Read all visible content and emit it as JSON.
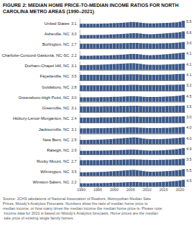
{
  "chart_data": [
    {
      "type": "bar",
      "title": "FIGURE 2: MEDIAN HOME PRICE-TO-MEDIAN INCOME RATIOS FOR NORTH CAROLINA METRO AREAS (1990–2021)",
      "ylabel": "United States",
      "categories": [
        "1990",
        null,
        null,
        null,
        null,
        "1995",
        null,
        null,
        null,
        null,
        "2000",
        null,
        null,
        null,
        null,
        "2005",
        null,
        null,
        null,
        null,
        "2010",
        null,
        null,
        null,
        null,
        "2015",
        null,
        null,
        null,
        null,
        "2020",
        null
      ],
      "values": [
        3.1,
        3.1,
        3.1,
        3.1,
        3.1,
        3.1,
        3.2,
        3.3,
        3.3,
        3.5,
        3.6,
        3.7,
        3.8,
        4.0,
        4.2,
        4.5,
        4.5,
        4.3,
        4.0,
        3.7,
        3.5,
        3.4,
        3.4,
        3.5,
        3.6,
        3.7,
        3.8,
        3.9,
        4.1,
        4.3,
        4.7,
        5.5
      ],
      "color": "#3D5A8A",
      "ylim": [
        0,
        6.875
      ],
      "annotations": [
        "3.1",
        "5.5"
      ],
      "grid": false,
      "tick_labels": false
    },
    {
      "type": "bar",
      "ylabel": "Asheville, NC",
      "categories": [
        "1990",
        null,
        null,
        null,
        null,
        "1995",
        null,
        null,
        null,
        null,
        "2000",
        null,
        null,
        null,
        null,
        "2005",
        null,
        null,
        null,
        null,
        "2010",
        null,
        null,
        null,
        null,
        "2015",
        null,
        null,
        null,
        null,
        "2020",
        null
      ],
      "values": [
        3.0,
        3.0,
        3.0,
        3.1,
        3.1,
        3.2,
        3.2,
        3.3,
        3.4,
        3.6,
        3.7,
        3.9,
        4.0,
        4.2,
        4.4,
        4.7,
        4.9,
        4.8,
        4.5,
        4.1,
        3.9,
        3.8,
        3.9,
        4.1,
        4.3,
        4.5,
        4.8,
        5.0,
        5.2,
        5.5,
        5.9,
        6.6
      ],
      "color": "#3D5A8A",
      "ylim": [
        0,
        8.25
      ],
      "annotations": [
        "3.0",
        "6.6"
      ],
      "grid": false,
      "tick_labels": false
    },
    {
      "type": "bar",
      "ylabel": "Burlington, NC",
      "categories": [
        "1990",
        null,
        null,
        null,
        null,
        "1995",
        null,
        null,
        null,
        null,
        "2000",
        null,
        null,
        null,
        null,
        "2005",
        null,
        null,
        null,
        null,
        "2010",
        null,
        null,
        null,
        null,
        "2015",
        null,
        null,
        null,
        null,
        "2020",
        null
      ],
      "values": [
        2.7,
        2.7,
        2.7,
        2.7,
        2.7,
        2.7,
        2.7,
        2.8,
        2.8,
        2.8,
        2.9,
        2.9,
        2.9,
        3.0,
        3.0,
        3.1,
        3.1,
        3.1,
        3.0,
        2.9,
        2.9,
        2.8,
        2.8,
        2.8,
        2.9,
        2.9,
        3.0,
        3.0,
        3.1,
        3.2,
        3.4,
        3.6
      ],
      "color": "#3D5A8A",
      "ylim": [
        0,
        4.5
      ],
      "annotations": [
        "2.7",
        "3.6"
      ],
      "grid": false,
      "tick_labels": false
    },
    {
      "type": "bar",
      "ylabel": "Charlotte-Concord-Gastonia, NC-SC",
      "categories": [
        "1990",
        null,
        null,
        null,
        null,
        "1995",
        null,
        null,
        null,
        null,
        "2000",
        null,
        null,
        null,
        null,
        "2005",
        null,
        null,
        null,
        null,
        "2010",
        null,
        null,
        null,
        null,
        "2015",
        null,
        null,
        null,
        null,
        "2020",
        null
      ],
      "values": [
        2.2,
        2.2,
        2.2,
        2.2,
        2.3,
        2.3,
        2.3,
        2.4,
        2.4,
        2.5,
        2.6,
        2.7,
        2.8,
        2.9,
        3.1,
        3.3,
        3.3,
        3.2,
        3.0,
        2.7,
        2.6,
        2.5,
        2.6,
        2.7,
        2.8,
        3.0,
        3.1,
        3.3,
        3.5,
        3.7,
        3.9,
        4.1
      ],
      "color": "#3D5A8A",
      "ylim": [
        0,
        5.125
      ],
      "annotations": [
        "2.2",
        "4.1"
      ],
      "grid": false,
      "tick_labels": false
    },
    {
      "type": "bar",
      "ylabel": "Durham-Chapel Hill, NC",
      "categories": [
        "1990",
        null,
        null,
        null,
        null,
        "1995",
        null,
        null,
        null,
        null,
        "2000",
        null,
        null,
        null,
        null,
        "2005",
        null,
        null,
        null,
        null,
        "2010",
        null,
        null,
        null,
        null,
        "2015",
        null,
        null,
        null,
        null,
        "2020",
        null
      ],
      "values": [
        3.1,
        3.1,
        3.2,
        3.2,
        3.3,
        3.3,
        3.4,
        3.5,
        3.6,
        3.7,
        3.8,
        3.9,
        4.0,
        4.1,
        4.2,
        4.3,
        4.3,
        4.1,
        3.9,
        3.6,
        3.4,
        3.3,
        3.3,
        3.3,
        3.3,
        3.4,
        3.5,
        3.6,
        3.7,
        3.8,
        3.9,
        4.1
      ],
      "color": "#3D5A8A",
      "ylim": [
        0,
        5.375
      ],
      "annotations": [
        "3.1",
        "4.1"
      ],
      "grid": false,
      "tick_labels": false
    },
    {
      "type": "bar",
      "ylabel": "Fayetteville, NC",
      "categories": [
        "1990",
        null,
        null,
        null,
        null,
        "1995",
        null,
        null,
        null,
        null,
        "2000",
        null,
        null,
        null,
        null,
        "2005",
        null,
        null,
        null,
        null,
        "2010",
        null,
        null,
        null,
        null,
        "2015",
        null,
        null,
        null,
        null,
        "2020",
        null
      ],
      "values": [
        3.5,
        3.5,
        3.5,
        3.5,
        3.5,
        3.5,
        3.5,
        3.5,
        3.5,
        3.5,
        3.6,
        3.6,
        3.6,
        3.7,
        3.7,
        3.8,
        3.8,
        3.8,
        3.7,
        3.6,
        3.6,
        3.5,
        3.5,
        3.5,
        3.6,
        3.6,
        3.7,
        3.7,
        3.8,
        3.9,
        4.0,
        4.1
      ],
      "color": "#3D5A8A",
      "ylim": [
        0,
        5.125
      ],
      "annotations": [
        "3.5",
        "4.1"
      ],
      "grid": false,
      "tick_labels": false
    },
    {
      "type": "bar",
      "ylabel": "Goldsboro, NC",
      "categories": [
        "1990",
        null,
        null,
        null,
        null,
        "1995",
        null,
        null,
        null,
        null,
        "2000",
        null,
        null,
        null,
        null,
        "2005",
        null,
        null,
        null,
        null,
        "2010",
        null,
        null,
        null,
        null,
        "2015",
        null,
        null,
        null,
        null,
        "2020",
        null
      ],
      "values": [
        2.8,
        2.8,
        2.8,
        2.8,
        2.8,
        2.8,
        2.8,
        2.8,
        2.8,
        2.8,
        2.8,
        2.8,
        2.9,
        2.9,
        2.9,
        3.0,
        3.0,
        3.0,
        2.9,
        2.9,
        2.9,
        2.9,
        2.9,
        2.9,
        2.9,
        2.9,
        3.0,
        3.0,
        3.0,
        3.1,
        3.1,
        3.2
      ],
      "color": "#3D5A8A",
      "ylim": [
        0,
        4.0
      ],
      "annotations": [
        "2.8",
        "3.2"
      ],
      "grid": false,
      "tick_labels": false
    },
    {
      "type": "bar",
      "ylabel": "Greensboro-High Point, NC",
      "categories": [
        "1990",
        null,
        null,
        null,
        null,
        "1995",
        null,
        null,
        null,
        null,
        "2000",
        null,
        null,
        null,
        null,
        "2005",
        null,
        null,
        null,
        null,
        "2010",
        null,
        null,
        null,
        null,
        "2015",
        null,
        null,
        null,
        null,
        "2020",
        null
      ],
      "values": [
        3.0,
        3.0,
        3.0,
        3.0,
        3.0,
        3.0,
        3.1,
        3.1,
        3.1,
        3.2,
        3.3,
        3.3,
        3.4,
        3.5,
        3.6,
        3.7,
        3.7,
        3.6,
        3.5,
        3.3,
        3.2,
        3.2,
        3.2,
        3.2,
        3.3,
        3.4,
        3.5,
        3.6,
        3.7,
        3.9,
        4.1,
        4.5
      ],
      "color": "#3D5A8A",
      "ylim": [
        0,
        5.625
      ],
      "annotations": [
        "3.0",
        "4.5"
      ],
      "grid": false,
      "tick_labels": false
    },
    {
      "type": "bar",
      "ylabel": "Greenville, NC",
      "categories": [
        "1990",
        null,
        null,
        null,
        null,
        "1995",
        null,
        null,
        null,
        null,
        "2000",
        null,
        null,
        null,
        null,
        "2005",
        null,
        null,
        null,
        null,
        "2010",
        null,
        null,
        null,
        null,
        "2015",
        null,
        null,
        null,
        null,
        "2020",
        null
      ],
      "values": [
        3.1,
        3.1,
        3.1,
        3.1,
        3.1,
        3.1,
        3.1,
        3.2,
        3.2,
        3.2,
        3.2,
        3.2,
        3.3,
        3.3,
        3.3,
        3.4,
        3.4,
        3.4,
        3.3,
        3.2,
        3.2,
        3.2,
        3.2,
        3.2,
        3.2,
        3.2,
        3.3,
        3.3,
        3.3,
        3.4,
        3.4,
        3.5
      ],
      "color": "#3D5A8A",
      "ylim": [
        0,
        4.375
      ],
      "annotations": [
        "3.1",
        "3.5"
      ],
      "grid": false,
      "tick_labels": false
    },
    {
      "type": "bar",
      "ylabel": "Hickory-Lenoir-Morganton, NC",
      "categories": [
        "1990",
        null,
        null,
        null,
        null,
        "1995",
        null,
        null,
        null,
        null,
        "2000",
        null,
        null,
        null,
        null,
        "2005",
        null,
        null,
        null,
        null,
        "2010",
        null,
        null,
        null,
        null,
        "2015",
        null,
        null,
        null,
        null,
        "2020",
        null
      ],
      "values": [
        2.4,
        2.4,
        2.4,
        2.4,
        2.4,
        2.4,
        2.5,
        2.5,
        2.5,
        2.5,
        2.6,
        2.6,
        2.6,
        2.7,
        2.7,
        2.8,
        2.8,
        2.8,
        2.7,
        2.7,
        2.7,
        2.7,
        2.7,
        2.7,
        2.7,
        2.8,
        2.8,
        2.8,
        2.9,
        2.9,
        2.9,
        3.0
      ],
      "color": "#3D5A8A",
      "ylim": [
        0,
        3.75
      ],
      "annotations": [
        "2.4",
        "3.0"
      ],
      "grid": false,
      "tick_labels": false
    },
    {
      "type": "bar",
      "ylabel": "Jacksonville, NC",
      "categories": [
        "1990",
        null,
        null,
        null,
        null,
        "1995",
        null,
        null,
        null,
        null,
        "2000",
        null,
        null,
        null,
        null,
        "2005",
        null,
        null,
        null,
        null,
        "2010",
        null,
        null,
        null,
        null,
        "2015",
        null,
        null,
        null,
        null,
        "2020",
        null
      ],
      "values": [
        3.1,
        3.1,
        3.1,
        3.1,
        3.2,
        3.2,
        3.2,
        3.2,
        3.3,
        3.3,
        3.4,
        3.4,
        3.5,
        3.5,
        3.6,
        3.7,
        3.7,
        3.6,
        3.5,
        3.4,
        3.3,
        3.3,
        3.3,
        3.3,
        3.3,
        3.4,
        3.4,
        3.5,
        3.6,
        3.7,
        3.8,
        4.0
      ],
      "color": "#3D5A8A",
      "ylim": [
        0,
        5.0
      ],
      "annotations": [
        "3.1",
        "4.0"
      ],
      "grid": false,
      "tick_labels": false
    },
    {
      "type": "bar",
      "ylabel": "New Bern, NC",
      "categories": [
        "1990",
        null,
        null,
        null,
        null,
        "1995",
        null,
        null,
        null,
        null,
        "2000",
        null,
        null,
        null,
        null,
        "2005",
        null,
        null,
        null,
        null,
        "2010",
        null,
        null,
        null,
        null,
        "2015",
        null,
        null,
        null,
        null,
        "2020",
        null
      ],
      "values": [
        2.5,
        2.5,
        2.5,
        2.6,
        2.6,
        2.7,
        2.7,
        2.8,
        2.9,
        3.0,
        3.2,
        3.3,
        3.4,
        3.6,
        3.7,
        3.9,
        4.0,
        3.9,
        3.6,
        3.3,
        3.1,
        3.0,
        3.0,
        3.0,
        3.0,
        3.1,
        3.2,
        3.3,
        3.5,
        3.6,
        3.8,
        4.0
      ],
      "color": "#3D5A8A",
      "ylim": [
        0,
        5.0
      ],
      "annotations": [
        "2.5",
        "4.0"
      ],
      "grid": false,
      "tick_labels": false
    },
    {
      "type": "bar",
      "ylabel": "Raleigh, NC",
      "categories": [
        "1990",
        null,
        null,
        null,
        null,
        "1995",
        null,
        null,
        null,
        null,
        "2000",
        null,
        null,
        null,
        null,
        "2005",
        null,
        null,
        null,
        null,
        "2010",
        null,
        null,
        null,
        null,
        "2015",
        null,
        null,
        null,
        null,
        "2020",
        null
      ],
      "values": [
        2.9,
        2.9,
        2.9,
        2.9,
        3.0,
        3.0,
        3.0,
        3.1,
        3.1,
        3.2,
        3.3,
        3.3,
        3.4,
        3.5,
        3.6,
        3.7,
        3.7,
        3.6,
        3.4,
        3.2,
        3.1,
        3.0,
        3.1,
        3.1,
        3.2,
        3.3,
        3.5,
        3.6,
        3.8,
        4.0,
        4.4,
        4.9
      ],
      "color": "#3D5A8A",
      "ylim": [
        0,
        6.125
      ],
      "annotations": [
        "2.9",
        "4.9"
      ],
      "grid": false,
      "tick_labels": false
    },
    {
      "type": "bar",
      "ylabel": "Rocky Mount, NC",
      "categories": [
        "1990",
        null,
        null,
        null,
        null,
        "1995",
        null,
        null,
        null,
        null,
        "2000",
        null,
        null,
        null,
        null,
        "2005",
        null,
        null,
        null,
        null,
        "2010",
        null,
        null,
        null,
        null,
        "2015",
        null,
        null,
        null,
        null,
        "2020",
        null
      ],
      "values": [
        2.7,
        2.7,
        2.7,
        2.7,
        2.7,
        2.7,
        2.7,
        2.8,
        2.8,
        2.8,
        2.9,
        2.9,
        2.9,
        3.0,
        3.0,
        3.1,
        3.1,
        3.0,
        3.0,
        2.9,
        2.9,
        2.8,
        2.8,
        2.8,
        2.9,
        2.9,
        3.0,
        3.0,
        3.1,
        3.2,
        3.3,
        3.5
      ],
      "color": "#3D5A8A",
      "ylim": [
        0,
        4.375
      ],
      "annotations": [
        "2.7",
        "3.5"
      ],
      "grid": false,
      "tick_labels": false
    },
    {
      "type": "bar",
      "ylabel": "Wilmington, NC",
      "categories": [
        "1990",
        null,
        null,
        null,
        null,
        "1995",
        null,
        null,
        null,
        null,
        "2000",
        null,
        null,
        null,
        null,
        "2005",
        null,
        null,
        null,
        null,
        "2010",
        null,
        null,
        null,
        null,
        "2015",
        null,
        null,
        null,
        null,
        "2020",
        null
      ],
      "values": [
        3.5,
        3.5,
        3.6,
        3.7,
        3.7,
        3.8,
        3.9,
        4.0,
        4.2,
        4.4,
        4.6,
        4.8,
        5.0,
        5.3,
        5.5,
        5.8,
        5.9,
        5.6,
        5.2,
        4.7,
        4.3,
        4.1,
        4.1,
        4.2,
        4.3,
        4.5,
        4.7,
        4.9,
        5.1,
        5.4,
        5.8,
        6.5
      ],
      "color": "#3D5A8A",
      "ylim": [
        0,
        8.125
      ],
      "annotations": [
        "3.5",
        "6.5"
      ],
      "grid": false,
      "tick_labels": false
    },
    {
      "type": "bar",
      "ylabel": "Winston-Salem, NC",
      "categories": [
        "1990",
        null,
        null,
        null,
        null,
        "1995",
        null,
        null,
        null,
        null,
        "2000",
        null,
        null,
        null,
        null,
        "2005",
        null,
        null,
        null,
        null,
        "2010",
        null,
        null,
        null,
        null,
        "2015",
        null,
        null,
        null,
        null,
        "2020",
        null
      ],
      "values": [
        2.2,
        2.2,
        2.2,
        2.2,
        2.3,
        2.3,
        2.3,
        2.4,
        2.4,
        2.5,
        2.6,
        2.6,
        2.7,
        2.8,
        2.9,
        3.0,
        3.0,
        3.0,
        2.9,
        2.8,
        2.8,
        2.8,
        2.8,
        2.9,
        3.0,
        3.1,
        3.2,
        3.4,
        3.6,
        3.8,
        4.1,
        4.5
      ],
      "color": "#3D5A8A",
      "ylim": [
        0,
        5.625
      ],
      "annotations": [
        "2.2",
        "4.5",
        "Source: JCHS tabulations of National Association of Realtors, Metropolitan Median Sale Prices; Moody's Analytics Forecasts. Numbers show the ratio of median home price to median income, or how many times the median income the median home price is. Please note: Income data for 2021 is based on Moody's Analytics forecasts. Home prices are the median sale price of existing single family homes."
      ],
      "grid": false,
      "tick_labels": "x"
    }
  ]
}
